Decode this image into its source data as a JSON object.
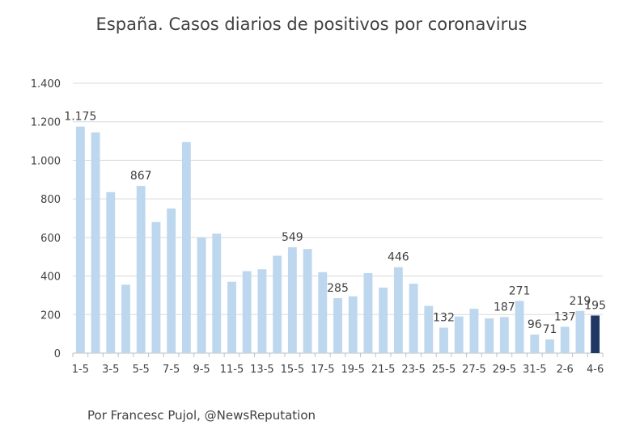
{
  "title": "España. Casos diarios de positivos por coronavirus",
  "credit": "Por Francesc Pujol, @NewsReputation",
  "colors": {
    "bar": "#bdd7ee",
    "highlight": "#1f3864",
    "grid": "#d9d9d9",
    "text": "#404040"
  },
  "chart_data": {
    "type": "bar",
    "title": "España. Casos diarios de positivos por coronavirus",
    "xlabel": "",
    "ylabel": "",
    "ylim": [
      0,
      1400
    ],
    "yticks": [
      0,
      200,
      400,
      600,
      800,
      1000,
      1200,
      1400
    ],
    "ytick_labels": [
      "0",
      "200",
      "400",
      "600",
      "800",
      "1.000",
      "1.200",
      "1.400"
    ],
    "grid": true,
    "categories": [
      "1-5",
      "2-5",
      "3-5",
      "4-5",
      "5-5",
      "6-5",
      "7-5",
      "8-5",
      "9-5",
      "10-5",
      "11-5",
      "12-5",
      "13-5",
      "14-5",
      "15-5",
      "16-5",
      "17-5",
      "18-5",
      "19-5",
      "20-5",
      "21-5",
      "22-5",
      "23-5",
      "24-5",
      "25-5",
      "26-5",
      "27-5",
      "28-5",
      "29-5",
      "30-5",
      "31-5",
      "1-6",
      "2-6",
      "3-6",
      "4-6"
    ],
    "xtick_labels": [
      "1-5",
      "",
      "3-5",
      "",
      "5-5",
      "",
      "7-5",
      "",
      "9-5",
      "",
      "11-5",
      "",
      "13-5",
      "",
      "15-5",
      "",
      "17-5",
      "",
      "19-5",
      "",
      "21-5",
      "",
      "23-5",
      "",
      "25-5",
      "",
      "27-5",
      "",
      "29-5",
      "",
      "31-5",
      "",
      "2-6",
      "",
      "4-6"
    ],
    "values": [
      1175,
      1145,
      835,
      355,
      867,
      680,
      750,
      1095,
      600,
      620,
      370,
      425,
      435,
      505,
      549,
      540,
      420,
      285,
      295,
      415,
      340,
      446,
      360,
      245,
      132,
      190,
      230,
      180,
      187,
      271,
      96,
      71,
      137,
      219,
      195
    ],
    "highlight_index": 34,
    "data_labels": [
      {
        "index": 0,
        "text": "1.175"
      },
      {
        "index": 4,
        "text": "867"
      },
      {
        "index": 14,
        "text": "549"
      },
      {
        "index": 17,
        "text": "285"
      },
      {
        "index": 21,
        "text": "446"
      },
      {
        "index": 24,
        "text": "132"
      },
      {
        "index": 28,
        "text": "187"
      },
      {
        "index": 29,
        "text": "271"
      },
      {
        "index": 30,
        "text": "96"
      },
      {
        "index": 31,
        "text": "71"
      },
      {
        "index": 32,
        "text": "137"
      },
      {
        "index": 33,
        "text": "219"
      },
      {
        "index": 34,
        "text": "195"
      }
    ]
  }
}
